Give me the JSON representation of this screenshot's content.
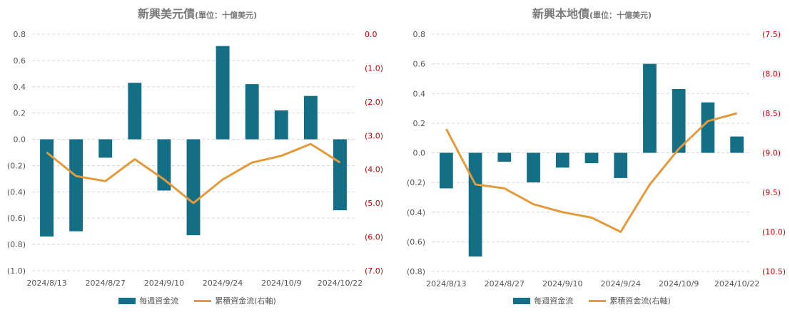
{
  "colors": {
    "bar": "#136f85",
    "line": "#e39a3b",
    "right_axis": "#c00000",
    "left_axis": "#555555",
    "grid": "#d9d9d9"
  },
  "charts": [
    {
      "title": "新興美元債",
      "unit": "(單位：十億美元)",
      "legend_bar": "每週資金流",
      "legend_line": "累積資金流(右軸)",
      "left_ticks": [
        "0.8",
        "0.6",
        "0.4",
        "0.2",
        "0.0",
        "(0.2)",
        "(0.4)",
        "(0.6)",
        "(0.8)",
        "(1.0)"
      ],
      "right_ticks": [
        "0.0",
        "(1.0)",
        "(2.0)",
        "(3.0)",
        "(4.0)",
        "(5.0)",
        "(6.0)",
        "(7.0)"
      ],
      "x_labels": [
        "2024/8/13",
        "2024/8/27",
        "2024/9/10",
        "2024/9/24",
        "2024/10/9",
        "2024/10/22"
      ]
    },
    {
      "title": "新興本地債",
      "unit": "(單位：十億美元)",
      "legend_bar": "每週資金流",
      "legend_line": "累積資金流(右軸)",
      "left_ticks": [
        "0.8",
        "0.6",
        "0.4",
        "0.2",
        "0.0",
        "(0.2)",
        "(0.4)",
        "(0.6)",
        "(0.8)"
      ],
      "right_ticks": [
        "(7.5)",
        "(8.0)",
        "(8.5)",
        "(9.0)",
        "(9.5)",
        "(10.0)",
        "(10.5)"
      ],
      "x_labels": [
        "2024/8/13",
        "2024/8/27",
        "2024/9/10",
        "2024/9/24",
        "2024/10/9",
        "2024/10/22"
      ]
    }
  ],
  "chart_data": [
    {
      "type": "bar",
      "title": "新興美元債",
      "ylabel": "",
      "y2label": "",
      "ylim": [
        -1.0,
        0.8
      ],
      "y2lim": [
        -7.0,
        0.0
      ],
      "grid": true,
      "legend_position": "bottom",
      "x": [
        "2024/8/13",
        "2024/8/20",
        "2024/8/27",
        "2024/9/3",
        "2024/9/10",
        "2024/9/17",
        "2024/9/24",
        "2024/10/1",
        "2024/10/9",
        "2024/10/15",
        "2024/10/22"
      ],
      "series": [
        {
          "name": "每週資金流",
          "axis": "left",
          "kind": "bar",
          "values": [
            -0.74,
            -0.7,
            -0.14,
            0.43,
            -0.39,
            -0.73,
            0.71,
            0.42,
            0.22,
            0.33,
            -0.54
          ]
        },
        {
          "name": "累積資金流(右軸)",
          "axis": "right",
          "kind": "line",
          "values": [
            -3.5,
            -4.2,
            -4.35,
            -3.7,
            -4.3,
            -5.0,
            -4.3,
            -3.8,
            -3.6,
            -3.25,
            -3.8
          ]
        }
      ]
    },
    {
      "type": "bar",
      "title": "新興本地債",
      "ylabel": "",
      "y2label": "",
      "ylim": [
        -0.8,
        0.8
      ],
      "y2lim": [
        -10.5,
        -7.5
      ],
      "grid": true,
      "legend_position": "bottom",
      "x": [
        "2024/8/13",
        "2024/8/20",
        "2024/8/27",
        "2024/9/3",
        "2024/9/10",
        "2024/9/17",
        "2024/9/24",
        "2024/10/1",
        "2024/10/9",
        "2024/10/15",
        "2024/10/22"
      ],
      "series": [
        {
          "name": "每週資金流",
          "axis": "left",
          "kind": "bar",
          "values": [
            -0.24,
            -0.7,
            -0.06,
            -0.2,
            -0.1,
            -0.07,
            -0.17,
            0.6,
            0.43,
            0.34,
            0.11
          ]
        },
        {
          "name": "累積資金流(右軸)",
          "axis": "right",
          "kind": "line",
          "values": [
            -8.7,
            -9.4,
            -9.45,
            -9.65,
            -9.75,
            -9.82,
            -10.0,
            -9.4,
            -8.95,
            -8.6,
            -8.5
          ]
        }
      ]
    }
  ]
}
